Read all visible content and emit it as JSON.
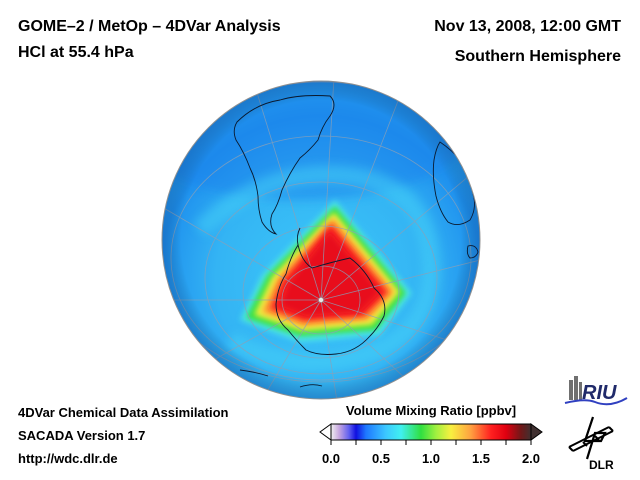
{
  "header": {
    "title_line1": "GOME–2 / MetOp – 4DVar Analysis",
    "title_line2": "HCl at 55.4 hPa",
    "date": "Nov 13, 2008, 12:00 GMT",
    "region": "Southern Hemisphere"
  },
  "footer": {
    "line1": "4DVar Chemical Data Assimilation",
    "line2": "SACADA Version 1.7",
    "line3": "http://wdc.dlr.de"
  },
  "map": {
    "projection": "orthographic",
    "pole": "South Pole",
    "parameter": "HCl",
    "pressure_level": "55.4 hPa",
    "ocean_background_color": "#1e90f0",
    "high_value_color": "#f0102a",
    "visible_landmasses": [
      "South America",
      "Antarctica",
      "Africa (southern tip)",
      "Antarctic Peninsula"
    ],
    "feature": "Triangular region of high HCl (~1.7–2.0 ppbv) over Antarctica, surrounded by ~0.6–0.9 ppbv background"
  },
  "colorbar": {
    "title": "Volume Mixing Ratio [ppbv]",
    "min": 0.0,
    "max": 2.0,
    "tick_labels": [
      "0.0",
      "0.5",
      "1.0",
      "1.5",
      "2.0"
    ],
    "tick_values": [
      0.0,
      0.25,
      0.5,
      0.75,
      1.0,
      1.25,
      1.5,
      1.75,
      2.0
    ],
    "extend": "both",
    "color_stops": [
      {
        "value": 0.0,
        "color": "#f0f0f0"
      },
      {
        "value": 0.08,
        "color": "#c8a8e0"
      },
      {
        "value": 0.18,
        "color": "#6060f0"
      },
      {
        "value": 0.25,
        "color": "#1010e0"
      },
      {
        "value": 0.35,
        "color": "#1e78ff"
      },
      {
        "value": 0.55,
        "color": "#3cc8ff"
      },
      {
        "value": 0.7,
        "color": "#40f0f0"
      },
      {
        "value": 0.9,
        "color": "#30e040"
      },
      {
        "value": 1.05,
        "color": "#a0f040"
      },
      {
        "value": 1.2,
        "color": "#f8f040"
      },
      {
        "value": 1.4,
        "color": "#ffa040"
      },
      {
        "value": 1.6,
        "color": "#ff2020"
      },
      {
        "value": 1.75,
        "color": "#e00010"
      },
      {
        "value": 1.9,
        "color": "#701818"
      },
      {
        "value": 2.0,
        "color": "#403030"
      }
    ]
  },
  "logos": {
    "riu": "RIU",
    "dlr": "DLR"
  }
}
